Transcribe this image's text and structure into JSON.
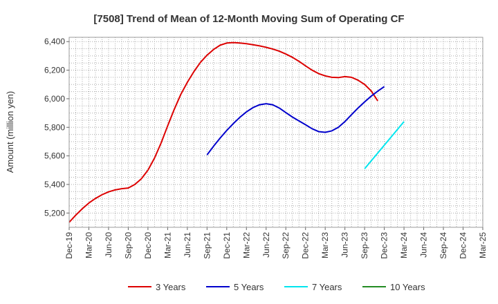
{
  "chart_data": {
    "type": "line",
    "title": "[7508]  Trend of Mean of 12-Month Moving Sum of Operating CF",
    "xlabel": "",
    "ylabel": "Amount (million yen)",
    "ylim": [
      5100,
      6430
    ],
    "yticks": [
      5200,
      5400,
      5600,
      5800,
      6000,
      6200,
      6400
    ],
    "ytick_labels": [
      "5,200",
      "5,400",
      "5,600",
      "5,800",
      "6,000",
      "6,200",
      "6,400"
    ],
    "x_start": "Dec-19",
    "x_months": 63,
    "xtick_labels": [
      "Dec-19",
      "Mar-20",
      "Jun-20",
      "Sep-20",
      "Dec-20",
      "Mar-21",
      "Jun-21",
      "Sep-21",
      "Dec-21",
      "Mar-22",
      "Jun-22",
      "Sep-22",
      "Dec-22",
      "Mar-23",
      "Jun-23",
      "Sep-23",
      "Dec-23",
      "Mar-24",
      "Jun-24",
      "Sep-24",
      "Dec-24",
      "Mar-25"
    ],
    "grid": true,
    "legend_position": "bottom",
    "series": [
      {
        "name": "3 Years",
        "color": "#dd0000",
        "x_offset_months": 0,
        "values": [
          5135,
          5185,
          5230,
          5270,
          5302,
          5328,
          5348,
          5362,
          5370,
          5375,
          5400,
          5440,
          5500,
          5585,
          5690,
          5810,
          5925,
          6030,
          6115,
          6190,
          6255,
          6305,
          6345,
          6375,
          6390,
          6393,
          6390,
          6385,
          6378,
          6370,
          6360,
          6348,
          6333,
          6313,
          6290,
          6262,
          6230,
          6200,
          6176,
          6160,
          6150,
          6148,
          6155,
          6150,
          6130,
          6100,
          6055,
          5985
        ]
      },
      {
        "name": "5 Years",
        "color": "#0000cc",
        "x_offset_months": 21,
        "values": [
          5607,
          5668,
          5725,
          5778,
          5826,
          5870,
          5908,
          5938,
          5958,
          5965,
          5958,
          5935,
          5903,
          5872,
          5845,
          5818,
          5790,
          5770,
          5765,
          5775,
          5800,
          5840,
          5888,
          5935,
          5978,
          6018,
          6053,
          6085
        ]
      },
      {
        "name": "7 Years",
        "color": "#00e5ee",
        "x_offset_months": 45,
        "values": [
          5510,
          5565,
          5620,
          5675,
          5730,
          5785,
          5840
        ]
      },
      {
        "name": "10 Years",
        "color": "#228b22",
        "x_offset_months": 0,
        "values": []
      }
    ]
  }
}
